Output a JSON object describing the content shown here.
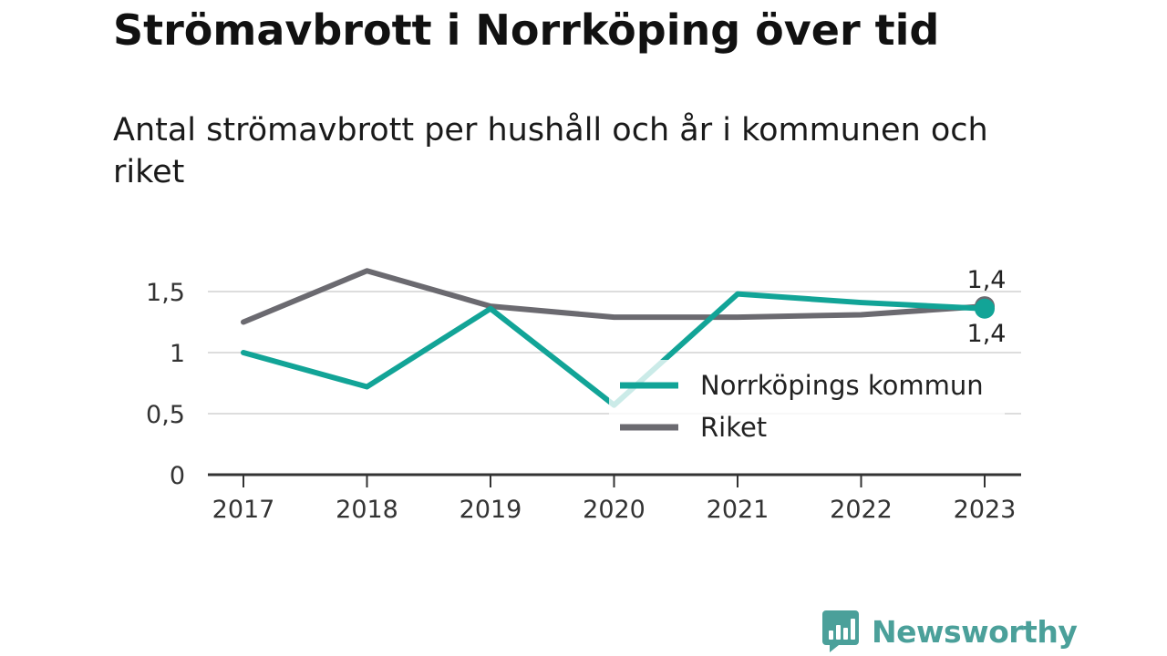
{
  "header": {
    "title": "Strömavbrott i Norrköping över tid",
    "subtitle": "Antal strömavbrott per hushåll och år i kommunen och riket"
  },
  "brand": {
    "name": "Newsworthy",
    "icon": "newsworthy-logo-icon",
    "color": "#4ba09a"
  },
  "chart_data": {
    "type": "line",
    "title": "Strömavbrott i Norrköping över tid",
    "subtitle": "Antal strömavbrott per hushåll och år i kommunen och riket",
    "xlabel": "",
    "ylabel": "",
    "x": [
      "2017",
      "2018",
      "2019",
      "2020",
      "2021",
      "2022",
      "2023"
    ],
    "ylim": [
      0,
      1.7
    ],
    "yticks": [
      {
        "value": 0,
        "label": "0"
      },
      {
        "value": 0.5,
        "label": "0,5"
      },
      {
        "value": 1,
        "label": "1"
      },
      {
        "value": 1.5,
        "label": "1,5"
      }
    ],
    "grid": "horizontal",
    "legend": "center-right",
    "series": [
      {
        "name": "Norrköpings kommun",
        "color": "#12a497",
        "values": [
          1.0,
          0.72,
          1.36,
          0.57,
          1.48,
          1.41,
          1.36
        ],
        "end_label": "1,4",
        "end_label_position": "below"
      },
      {
        "name": "Riket",
        "color": "#6b6a70",
        "values": [
          1.25,
          1.67,
          1.38,
          1.29,
          1.29,
          1.31,
          1.38
        ],
        "end_label": "1,4",
        "end_label_position": "above"
      }
    ]
  }
}
